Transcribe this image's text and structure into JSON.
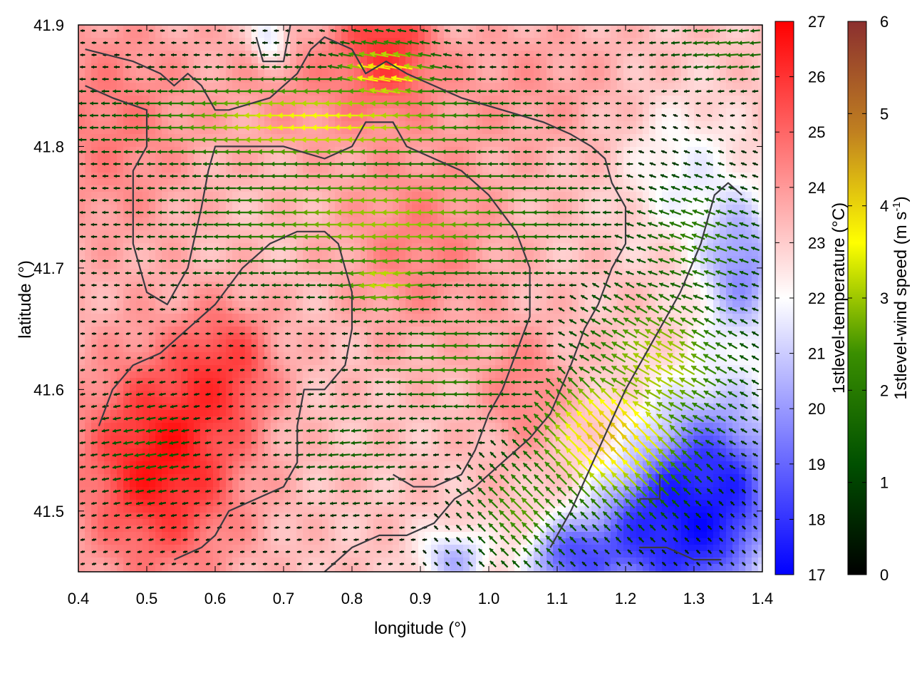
{
  "chart_data": {
    "type": "heatmap",
    "title": "",
    "xlabel": "longitude (°)",
    "ylabel": "latitude (°)",
    "xlim": [
      0.4,
      1.4
    ],
    "ylim": [
      41.45,
      41.9
    ],
    "xticks": [
      "0.4",
      "0.5",
      "0.6",
      "0.7",
      "0.8",
      "0.9",
      "1.0",
      "1.1",
      "1.2",
      "1.3",
      "1.4"
    ],
    "yticks": [
      "41.5",
      "41.6",
      "41.7",
      "41.8",
      "41.9"
    ],
    "colorbars": [
      {
        "name": "temperature",
        "label_main": "1stlevel-temperature (°C)",
        "range": [
          17,
          27
        ],
        "ticks": [
          "17",
          "18",
          "19",
          "20",
          "21",
          "22",
          "23",
          "24",
          "25",
          "26",
          "27"
        ],
        "colors": [
          "#0000ff",
          "#ffffff",
          "#ff0000"
        ]
      },
      {
        "name": "wind-speed",
        "label_main": "1stlevel-wind speed (m s",
        "label_sup": "-1",
        "label_end": ")",
        "range": [
          0,
          6
        ],
        "ticks": [
          "0",
          "1",
          "2",
          "3",
          "4",
          "5",
          "6"
        ],
        "colors": [
          "#000000",
          "#005000",
          "#3a8f00",
          "#ffff00",
          "#c08020",
          "#8b2f2f"
        ]
      }
    ],
    "temperature_field": {
      "description_values": "approximate temperature (°C) at sample locations",
      "background": 23.2,
      "features": [
        {
          "lon": 0.52,
          "lat": 41.54,
          "temp": 26.6,
          "radius_lon": 0.12,
          "radius_lat": 0.09
        },
        {
          "lon": 0.85,
          "lat": 41.88,
          "temp": 26.3,
          "radius_lon": 0.06,
          "radius_lat": 0.04
        },
        {
          "lon": 0.62,
          "lat": 41.62,
          "temp": 25.3,
          "radius_lon": 0.07,
          "radius_lat": 0.05
        },
        {
          "lon": 0.45,
          "lat": 41.82,
          "temp": 24.6,
          "radius_lon": 0.12,
          "radius_lat": 0.1
        },
        {
          "lon": 0.75,
          "lat": 41.85,
          "temp": 24.2,
          "radius_lon": 0.14,
          "radius_lat": 0.06
        },
        {
          "lon": 1.05,
          "lat": 41.85,
          "temp": 24.0,
          "radius_lon": 0.15,
          "radius_lat": 0.06
        },
        {
          "lon": 0.9,
          "lat": 41.72,
          "temp": 24.5,
          "radius_lon": 0.12,
          "radius_lat": 0.08
        },
        {
          "lon": 1.05,
          "lat": 41.6,
          "temp": 24.5,
          "radius_lon": 0.06,
          "radius_lat": 0.05
        },
        {
          "lon": 1.33,
          "lat": 41.52,
          "temp": 18.0,
          "radius_lon": 0.11,
          "radius_lat": 0.08
        },
        {
          "lon": 1.25,
          "lat": 41.48,
          "temp": 18.6,
          "radius_lon": 0.1,
          "radius_lat": 0.05
        },
        {
          "lon": 1.37,
          "lat": 41.7,
          "temp": 19.8,
          "radius_lon": 0.06,
          "radius_lat": 0.06
        },
        {
          "lon": 1.12,
          "lat": 41.46,
          "temp": 18.9,
          "radius_lon": 0.06,
          "radius_lat": 0.03
        },
        {
          "lon": 0.95,
          "lat": 41.46,
          "temp": 20.5,
          "radius_lon": 0.05,
          "radius_lat": 0.025
        },
        {
          "lon": 0.68,
          "lat": 41.89,
          "temp": 20.5,
          "radius_lon": 0.025,
          "radius_lat": 0.02
        },
        {
          "lon": 1.28,
          "lat": 41.78,
          "temp": 21.8,
          "radius_lon": 0.08,
          "radius_lat": 0.06
        }
      ]
    },
    "wind_field": {
      "description_values": "approximate wind speed (m/s) and direction toward which arrows point (degrees, 0=east, 90=north)",
      "background_speed": 0.4,
      "zones": [
        {
          "lon": 0.85,
          "lat": 41.86,
          "speed": 4.0,
          "radius_lon": 0.08,
          "radius_lat": 0.03,
          "dir": 170
        },
        {
          "lon": 0.75,
          "lat": 41.82,
          "speed": 3.6,
          "radius_lon": 0.28,
          "radius_lat": 0.04,
          "dir": 180
        },
        {
          "lon": 0.85,
          "lat": 41.74,
          "speed": 3.0,
          "radius_lon": 0.3,
          "radius_lat": 0.06,
          "dir": 180
        },
        {
          "lon": 0.85,
          "lat": 41.69,
          "speed": 3.3,
          "radius_lon": 0.08,
          "radius_lat": 0.03,
          "dir": 185
        },
        {
          "lon": 1.18,
          "lat": 41.56,
          "speed": 4.3,
          "radius_lon": 0.12,
          "radius_lat": 0.06,
          "dir": 135
        },
        {
          "lon": 1.25,
          "lat": 41.62,
          "speed": 3.2,
          "radius_lon": 0.12,
          "radius_lat": 0.07,
          "dir": 150
        },
        {
          "lon": 1.05,
          "lat": 41.5,
          "speed": 2.6,
          "radius_lon": 0.08,
          "radius_lat": 0.05,
          "dir": 135
        },
        {
          "lon": 1.3,
          "lat": 41.72,
          "speed": 2.2,
          "radius_lon": 0.1,
          "radius_lat": 0.06,
          "dir": 160
        },
        {
          "lon": 0.95,
          "lat": 41.62,
          "speed": 2.3,
          "radius_lon": 0.12,
          "radius_lat": 0.05,
          "dir": 180
        },
        {
          "lon": 0.5,
          "lat": 41.55,
          "speed": 1.6,
          "radius_lon": 0.08,
          "radius_lat": 0.05,
          "dir": 190
        },
        {
          "lon": 0.8,
          "lat": 41.55,
          "speed": 1.6,
          "radius_lon": 0.1,
          "radius_lat": 0.05,
          "dir": 185
        },
        {
          "lon": 1.35,
          "lat": 41.88,
          "speed": 1.9,
          "radius_lon": 0.1,
          "radius_lat": 0.03,
          "dir": 185
        }
      ]
    },
    "outline": {
      "description": "dark grey contour lines (lon, lat)",
      "color": "#3a3a40",
      "lines": [
        [
          [
            0.41,
            41.88
          ],
          [
            0.48,
            41.87
          ],
          [
            0.52,
            41.86
          ],
          [
            0.54,
            41.85
          ],
          [
            0.56,
            41.86
          ],
          [
            0.58,
            41.85
          ],
          [
            0.6,
            41.83
          ],
          [
            0.62,
            41.83
          ],
          [
            0.68,
            41.84
          ],
          [
            0.72,
            41.86
          ],
          [
            0.74,
            41.88
          ],
          [
            0.76,
            41.89
          ],
          [
            0.8,
            41.88
          ],
          [
            0.82,
            41.86
          ],
          [
            0.85,
            41.87
          ],
          [
            0.88,
            41.86
          ],
          [
            0.92,
            41.85
          ],
          [
            0.96,
            41.84
          ],
          [
            1.02,
            41.83
          ],
          [
            1.08,
            41.82
          ],
          [
            1.12,
            41.81
          ],
          [
            1.15,
            41.8
          ],
          [
            1.17,
            41.79
          ],
          [
            1.18,
            41.77
          ],
          [
            1.2,
            41.75
          ],
          [
            1.2,
            41.72
          ],
          [
            1.18,
            41.7
          ],
          [
            1.16,
            41.67
          ],
          [
            1.14,
            41.65
          ],
          [
            1.12,
            41.62
          ],
          [
            1.09,
            41.58
          ],
          [
            1.06,
            41.56
          ],
          [
            1.02,
            41.54
          ],
          [
            0.98,
            41.52
          ],
          [
            0.95,
            41.51
          ],
          [
            0.92,
            41.49
          ],
          [
            0.88,
            41.48
          ],
          [
            0.84,
            41.48
          ],
          [
            0.8,
            41.47
          ],
          [
            0.78,
            41.46
          ],
          [
            0.76,
            41.45
          ]
        ],
        [
          [
            0.41,
            41.85
          ],
          [
            0.45,
            41.84
          ],
          [
            0.5,
            41.83
          ],
          [
            0.5,
            41.8
          ],
          [
            0.48,
            41.78
          ],
          [
            0.48,
            41.75
          ],
          [
            0.48,
            41.72
          ],
          [
            0.5,
            41.68
          ],
          [
            0.53,
            41.67
          ],
          [
            0.56,
            41.7
          ],
          [
            0.58,
            41.75
          ],
          [
            0.59,
            41.78
          ],
          [
            0.6,
            41.8
          ],
          [
            0.64,
            41.8
          ],
          [
            0.7,
            41.8
          ],
          [
            0.76,
            41.79
          ],
          [
            0.8,
            41.8
          ],
          [
            0.82,
            41.82
          ],
          [
            0.86,
            41.82
          ],
          [
            0.88,
            41.8
          ],
          [
            0.92,
            41.79
          ],
          [
            0.96,
            41.78
          ],
          [
            1.0,
            41.76
          ],
          [
            1.04,
            41.73
          ],
          [
            1.06,
            41.7
          ],
          [
            1.06,
            41.66
          ],
          [
            1.04,
            41.63
          ],
          [
            1.02,
            41.6
          ],
          [
            1.0,
            41.58
          ],
          [
            0.98,
            41.55
          ],
          [
            0.96,
            41.53
          ],
          [
            0.92,
            41.52
          ],
          [
            0.89,
            41.52
          ],
          [
            0.86,
            41.53
          ]
        ],
        [
          [
            0.43,
            41.57
          ],
          [
            0.45,
            41.6
          ],
          [
            0.48,
            41.62
          ],
          [
            0.52,
            41.63
          ],
          [
            0.56,
            41.65
          ],
          [
            0.6,
            41.67
          ],
          [
            0.64,
            41.7
          ],
          [
            0.68,
            41.72
          ],
          [
            0.72,
            41.73
          ],
          [
            0.76,
            41.73
          ],
          [
            0.78,
            41.72
          ],
          [
            0.79,
            41.7
          ],
          [
            0.8,
            41.68
          ],
          [
            0.8,
            41.65
          ],
          [
            0.79,
            41.62
          ],
          [
            0.76,
            41.6
          ],
          [
            0.73,
            41.6
          ],
          [
            0.72,
            41.57
          ],
          [
            0.72,
            41.54
          ],
          [
            0.7,
            41.52
          ],
          [
            0.66,
            41.51
          ],
          [
            0.62,
            41.5
          ],
          [
            0.6,
            41.48
          ],
          [
            0.58,
            41.47
          ],
          [
            0.54,
            41.46
          ]
        ],
        [
          [
            1.22,
            41.47
          ],
          [
            1.26,
            41.47
          ],
          [
            1.3,
            41.46
          ],
          [
            1.34,
            41.46
          ]
        ],
        [
          [
            1.09,
            41.47
          ],
          [
            1.12,
            41.5
          ],
          [
            1.16,
            41.55
          ],
          [
            1.2,
            41.6
          ],
          [
            1.24,
            41.64
          ],
          [
            1.28,
            41.68
          ],
          [
            1.31,
            41.72
          ],
          [
            1.33,
            41.76
          ],
          [
            1.35,
            41.77
          ],
          [
            1.37,
            41.76
          ]
        ],
        [
          [
            0.66,
            41.89
          ],
          [
            0.67,
            41.87
          ],
          [
            0.7,
            41.87
          ],
          [
            0.71,
            41.9
          ]
        ],
        [
          [
            1.22,
            41.51
          ],
          [
            1.25,
            41.51
          ],
          [
            1.25,
            41.53
          ]
        ]
      ]
    }
  }
}
